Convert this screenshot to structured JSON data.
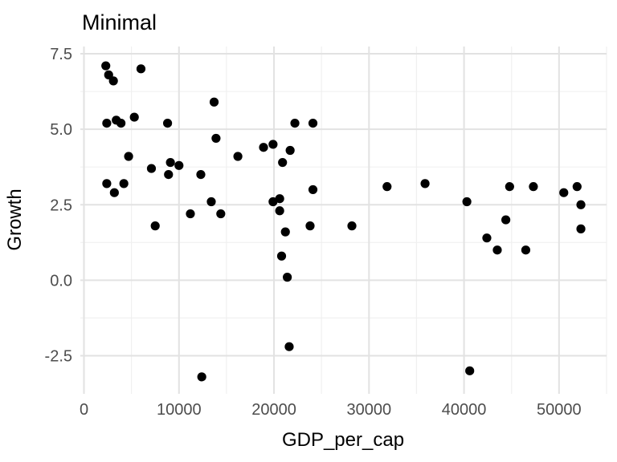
{
  "chart_data": {
    "type": "scatter",
    "title": "Minimal",
    "xlabel": "GDP_per_cap",
    "ylabel": "Growth",
    "x_ticks": [
      0,
      10000,
      20000,
      30000,
      40000,
      50000
    ],
    "x_tick_labels": [
      "0",
      "10000",
      "20000",
      "30000",
      "40000",
      "50000"
    ],
    "x_minor_ticks": [
      5000,
      15000,
      25000,
      35000,
      45000,
      55000
    ],
    "y_ticks": [
      -2.5,
      0.0,
      2.5,
      5.0,
      7.5
    ],
    "y_tick_labels": [
      "-2.5",
      "0.0",
      "2.5",
      "5.0",
      "7.5"
    ],
    "y_minor_ticks": [
      -1.25,
      1.25,
      3.75,
      6.25
    ],
    "xlim": [
      -500,
      55200
    ],
    "ylim": [
      -3.8,
      7.75
    ],
    "grid": "major+minor",
    "legend": "none",
    "theme": "minimal",
    "point_color": "#000000",
    "point_radius": 5.6,
    "points": [
      [
        2300,
        7.1
      ],
      [
        2400,
        5.2
      ],
      [
        2400,
        3.2
      ],
      [
        2600,
        6.8
      ],
      [
        3100,
        6.6
      ],
      [
        3200,
        2.9
      ],
      [
        3400,
        5.3
      ],
      [
        3900,
        5.2
      ],
      [
        4200,
        3.2
      ],
      [
        4700,
        4.1
      ],
      [
        5300,
        5.4
      ],
      [
        6000,
        7.0
      ],
      [
        7100,
        3.7
      ],
      [
        7500,
        1.8
      ],
      [
        8800,
        5.2
      ],
      [
        8900,
        3.5
      ],
      [
        9100,
        3.9
      ],
      [
        10000,
        3.8
      ],
      [
        11200,
        2.2
      ],
      [
        12300,
        3.5
      ],
      [
        12400,
        -3.2
      ],
      [
        13400,
        2.6
      ],
      [
        13700,
        5.9
      ],
      [
        13900,
        4.7
      ],
      [
        14400,
        2.2
      ],
      [
        16200,
        4.1
      ],
      [
        18900,
        4.4
      ],
      [
        19900,
        4.5
      ],
      [
        19900,
        2.6
      ],
      [
        20600,
        2.7
      ],
      [
        20600,
        2.3
      ],
      [
        20800,
        0.8
      ],
      [
        20900,
        3.9
      ],
      [
        21200,
        1.6
      ],
      [
        21400,
        0.1
      ],
      [
        21600,
        -2.2
      ],
      [
        21700,
        4.3
      ],
      [
        22200,
        5.2
      ],
      [
        23800,
        1.8
      ],
      [
        24100,
        5.2
      ],
      [
        24100,
        3.0
      ],
      [
        28200,
        1.8
      ],
      [
        31900,
        3.1
      ],
      [
        35900,
        3.2
      ],
      [
        40300,
        2.6
      ],
      [
        40600,
        -3.0
      ],
      [
        42400,
        1.4
      ],
      [
        43500,
        1.0
      ],
      [
        44400,
        2.0
      ],
      [
        44800,
        3.1
      ],
      [
        46500,
        1.0
      ],
      [
        47300,
        3.1
      ],
      [
        50500,
        2.9
      ],
      [
        51900,
        3.1
      ],
      [
        52300,
        2.5
      ],
      [
        52300,
        1.7
      ]
    ]
  },
  "colors": {
    "background": "#ffffff",
    "grid_major": "#e2e2e2",
    "grid_minor": "#f0f0f0",
    "tick_text": "#4d4d4d",
    "title_text": "#000000",
    "point": "#000000"
  }
}
